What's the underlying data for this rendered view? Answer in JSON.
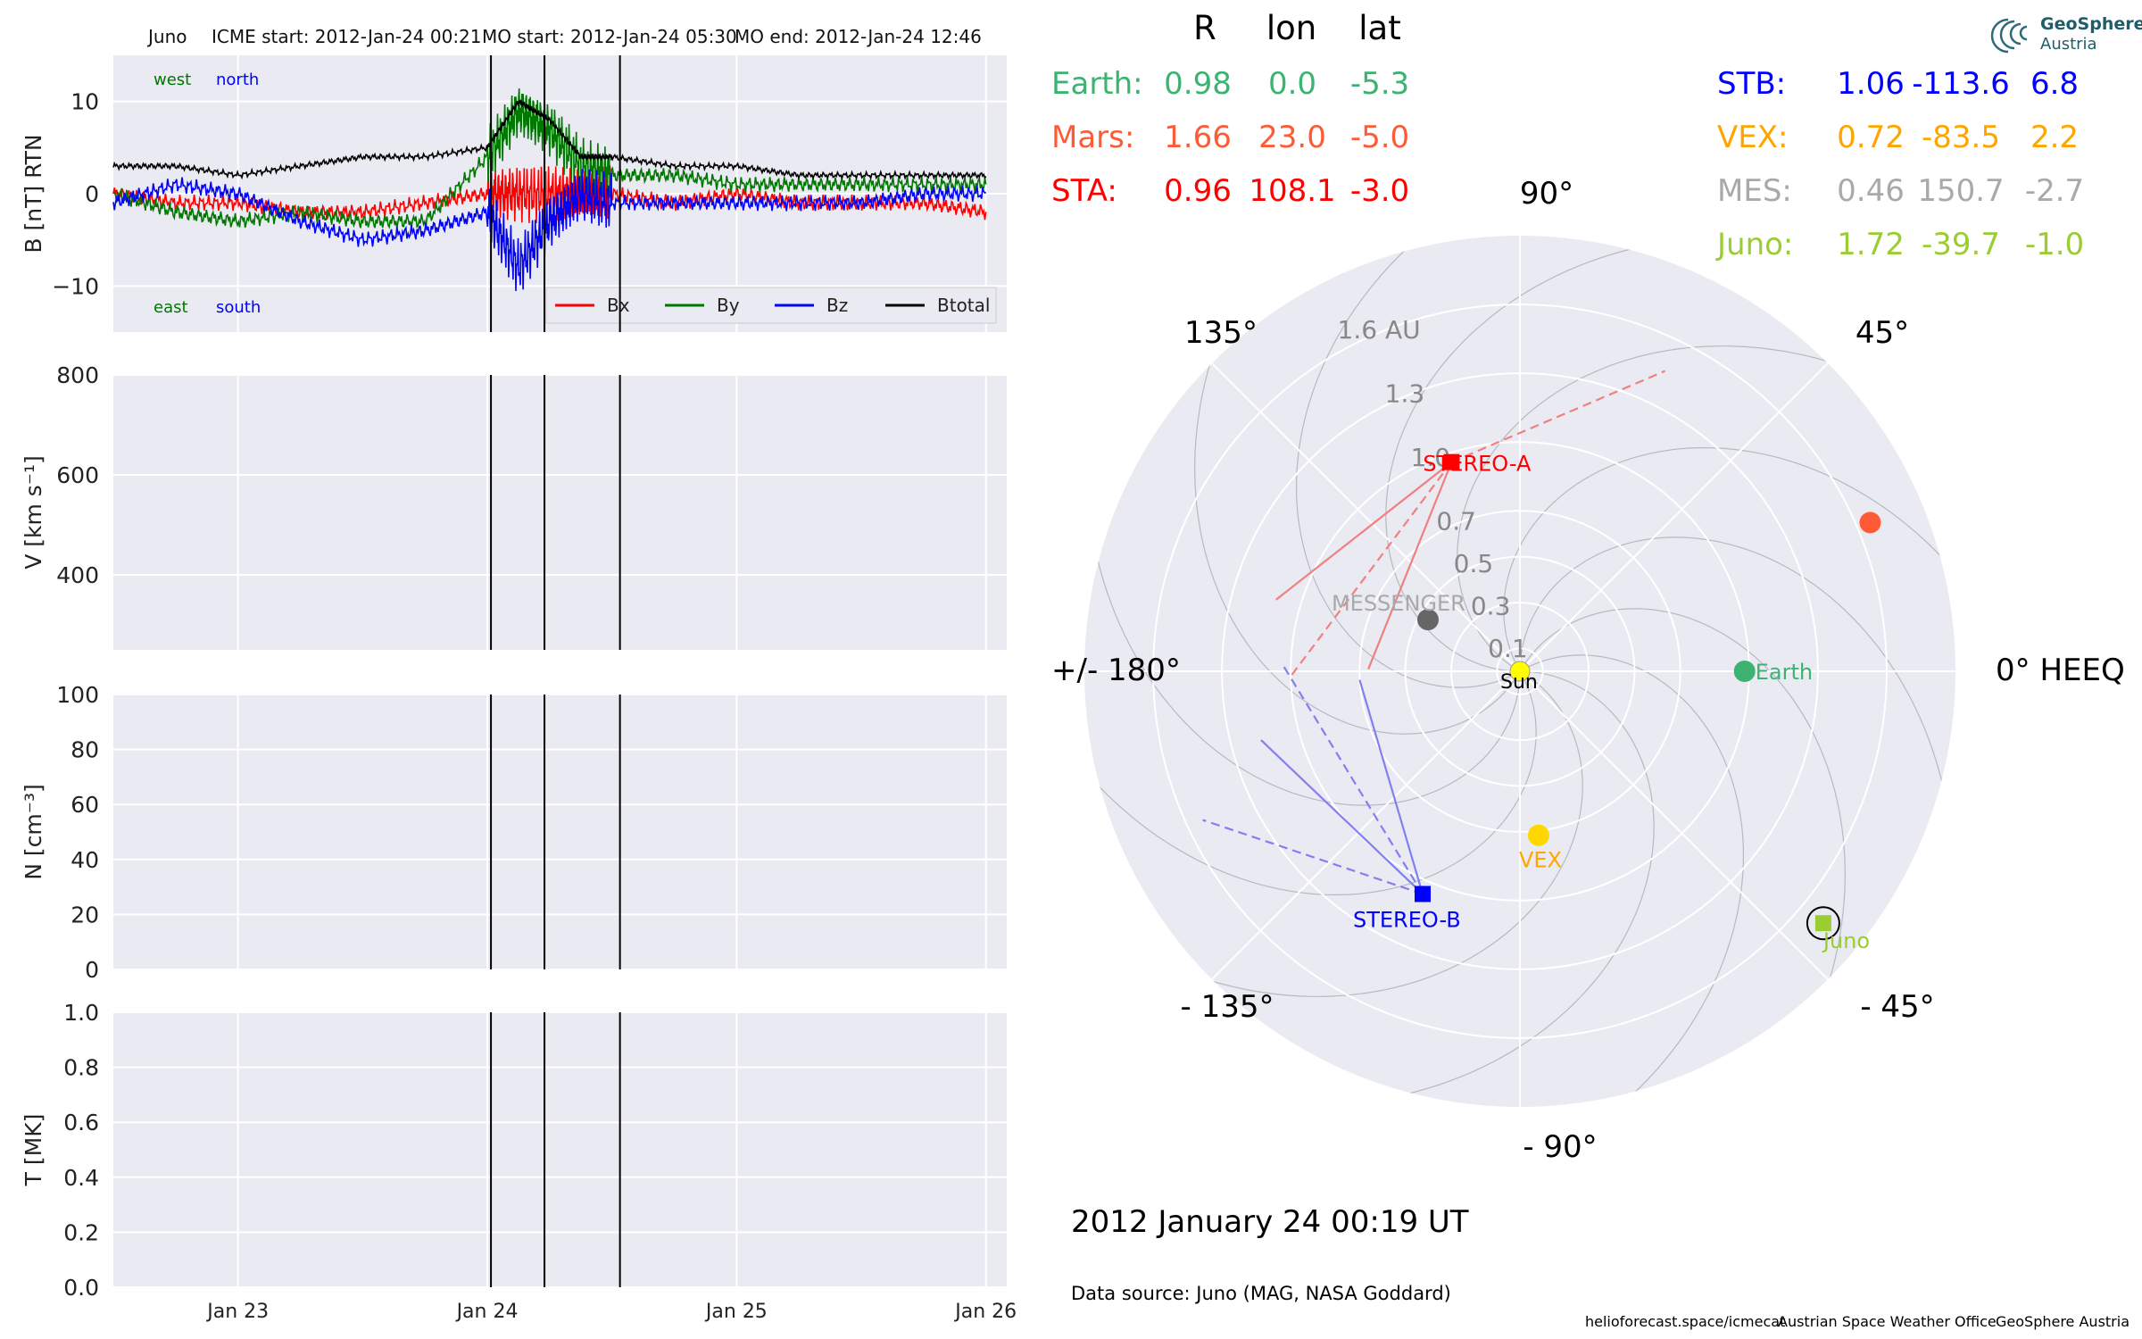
{
  "header": {
    "spacecraft": "Juno",
    "icme_start": "ICME start: 2012-Jan-24 00:21",
    "mo_start": "MO start: 2012-Jan-24 05:30",
    "mo_end": "MO end: 2012-Jan-24 12:46"
  },
  "logo": {
    "line1": "GeoSphere",
    "line2": "Austria"
  },
  "footer": {
    "date": "2012 January 24  00:19 UT",
    "source": "Data source: Juno (MAG, NASA Goddard)",
    "credit1": "helioforecast.space/icmecat",
    "credit2": "Austrian Space Weather Office",
    "credit3": "GeoSphere Austria"
  },
  "colors": {
    "bx": "#ff0000",
    "by": "#007700",
    "bz": "#0000ff",
    "btotal": "#000000",
    "panel_bg": "#eaeaf2",
    "earth": "#3cb371",
    "mars": "#ff5a36",
    "sta": "#ff0000",
    "stb": "#0000ff",
    "vex": "#ffa500",
    "mes": "#a9a9a9",
    "juno": "#9acd32",
    "sun": "#ffff00"
  },
  "chart_data": [
    {
      "type": "line",
      "panel": "magnetic field",
      "ylabel": "B [nT] RTN",
      "ylim": [
        -15,
        15
      ],
      "yticks": [
        "10",
        "0",
        "−10"
      ],
      "corner_labels": {
        "west": "west",
        "north": "north",
        "east": "east",
        "south": "south"
      },
      "xlim": [
        "2012-01-22 12:00",
        "2012-01-26 02:00"
      ],
      "xticks": [
        "Jan 23",
        "Jan 24",
        "Jan 25",
        "Jan 26"
      ],
      "event_lines": [
        "2012-01-24 00:21",
        "2012-01-24 05:30",
        "2012-01-24 12:46"
      ],
      "x": [
        "2012-01-22 12:00",
        "2012-01-22 18:00",
        "2012-01-23 00:00",
        "2012-01-23 06:00",
        "2012-01-23 12:00",
        "2012-01-23 18:00",
        "2012-01-24 00:00",
        "2012-01-24 03:00",
        "2012-01-24 06:00",
        "2012-01-24 09:00",
        "2012-01-24 12:00",
        "2012-01-24 18:00",
        "2012-01-25 00:00",
        "2012-01-25 06:00",
        "2012-01-25 12:00",
        "2012-01-25 18:00",
        "2012-01-26 00:00"
      ],
      "series": [
        {
          "name": "Bx",
          "values": [
            0,
            -1,
            -1,
            -2,
            -2,
            -1,
            0,
            0,
            0,
            0,
            0,
            -1,
            0,
            -1,
            -1,
            -1,
            -2
          ]
        },
        {
          "name": "By",
          "values": [
            0,
            -2,
            -3,
            -2,
            -3,
            -3,
            4,
            9,
            7,
            3,
            2,
            2,
            1,
            1,
            1,
            1,
            1
          ]
        },
        {
          "name": "Bz",
          "values": [
            -1,
            1,
            0,
            -3,
            -5,
            -4,
            -2,
            -8,
            -3,
            0,
            -1,
            -1,
            -1,
            -1,
            -1,
            0,
            0
          ]
        },
        {
          "name": "Btotal",
          "values": [
            3,
            3,
            2,
            3,
            4,
            4,
            5,
            10,
            8,
            4,
            4,
            3,
            3,
            2,
            2,
            2,
            2
          ]
        }
      ]
    },
    {
      "type": "line",
      "panel": "speed",
      "ylabel": "V [km s⁻¹]",
      "ylim": [
        250,
        800
      ],
      "yticks": [
        "800",
        "600",
        "400"
      ],
      "series": []
    },
    {
      "type": "line",
      "panel": "density",
      "ylabel": "N [cm⁻³]",
      "ylim": [
        0,
        100
      ],
      "yticks": [
        "100",
        "80",
        "60",
        "40",
        "20",
        "0"
      ],
      "series": []
    },
    {
      "type": "line",
      "panel": "temperature",
      "ylabel": "T [MK]",
      "ylim": [
        0,
        1
      ],
      "yticks": [
        "1.0",
        "0.8",
        "0.6",
        "0.4",
        "0.2",
        "0.0"
      ],
      "series": []
    },
    {
      "type": "scatter",
      "panel": "polar position plot",
      "rlim": [
        0,
        1.9
      ],
      "radial_ticks": [
        "1.6 AU",
        "1.3",
        "1.0",
        "0.7",
        "0.5",
        "0.3",
        "0.1"
      ],
      "angle_labels": [
        "90°",
        "45°",
        "0° HEEQ",
        "- 45°",
        "- 90°",
        "- 135°",
        "+/- 180°",
        "135°"
      ],
      "table_headers": [
        "R",
        "lon",
        "lat"
      ],
      "bodies": [
        {
          "name": "Earth",
          "label": "Earth:",
          "r": "0.98",
          "lon": "0.0",
          "lat": "-5.3",
          "plot_label": "Earth"
        },
        {
          "name": "Mars",
          "label": "Mars:",
          "r": "1.66",
          "lon": "23.0",
          "lat": "-5.0",
          "plot_label": ""
        },
        {
          "name": "STA",
          "label": "STA:",
          "r": "0.96",
          "lon": "108.1",
          "lat": "-3.0",
          "plot_label": "STEREO-A"
        },
        {
          "name": "STB",
          "label": "STB:",
          "r": "1.06",
          "lon": "-113.6",
          "lat": "6.8",
          "plot_label": "STEREO-B"
        },
        {
          "name": "VEX",
          "label": "VEX:",
          "r": "0.72",
          "lon": "-83.5",
          "lat": "2.2",
          "plot_label": "VEX"
        },
        {
          "name": "MES",
          "label": "MES:",
          "r": "0.46",
          "lon": "150.7",
          "lat": "-2.7",
          "plot_label": "MESSENGER"
        },
        {
          "name": "Juno",
          "label": "Juno:",
          "r": "1.72",
          "lon": "-39.7",
          "lat": "-1.0",
          "plot_label": "Juno"
        }
      ],
      "sun_label": "Sun",
      "fov_lines": [
        {
          "body": "STA",
          "angles": [
            -40,
            -55,
            -70
          ]
        },
        {
          "body": "STB",
          "angles": [
            40,
            55,
            70
          ]
        }
      ]
    }
  ]
}
